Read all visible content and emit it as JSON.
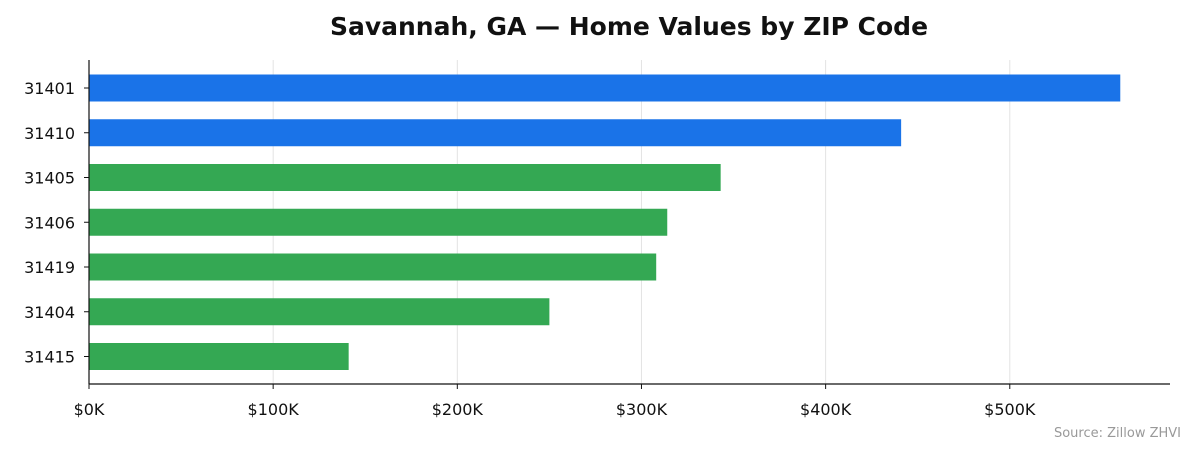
{
  "chart_data": {
    "type": "bar",
    "orientation": "horizontal",
    "title": "Savannah, GA — Home Values by ZIP Code",
    "xlabel": "",
    "ylabel": "",
    "categories": [
      "31401",
      "31410",
      "31405",
      "31406",
      "31419",
      "31404",
      "31415"
    ],
    "values": [
      560000,
      441000,
      343000,
      314000,
      308000,
      250000,
      141000
    ],
    "bar_colors": [
      "#1a73e8",
      "#1a73e8",
      "#34a853",
      "#34a853",
      "#34a853",
      "#34a853",
      "#34a853"
    ],
    "xlim": [
      0,
      587000
    ],
    "x_ticks": [
      {
        "value": 0,
        "label": "$0K"
      },
      {
        "value": 100000,
        "label": "$100K"
      },
      {
        "value": 200000,
        "label": "$200K"
      },
      {
        "value": 300000,
        "label": "$300K"
      },
      {
        "value": 400000,
        "label": "$400K"
      },
      {
        "value": 500000,
        "label": "$500K"
      }
    ],
    "grid": "vertical",
    "source": "Source: Zillow ZHVI"
  }
}
